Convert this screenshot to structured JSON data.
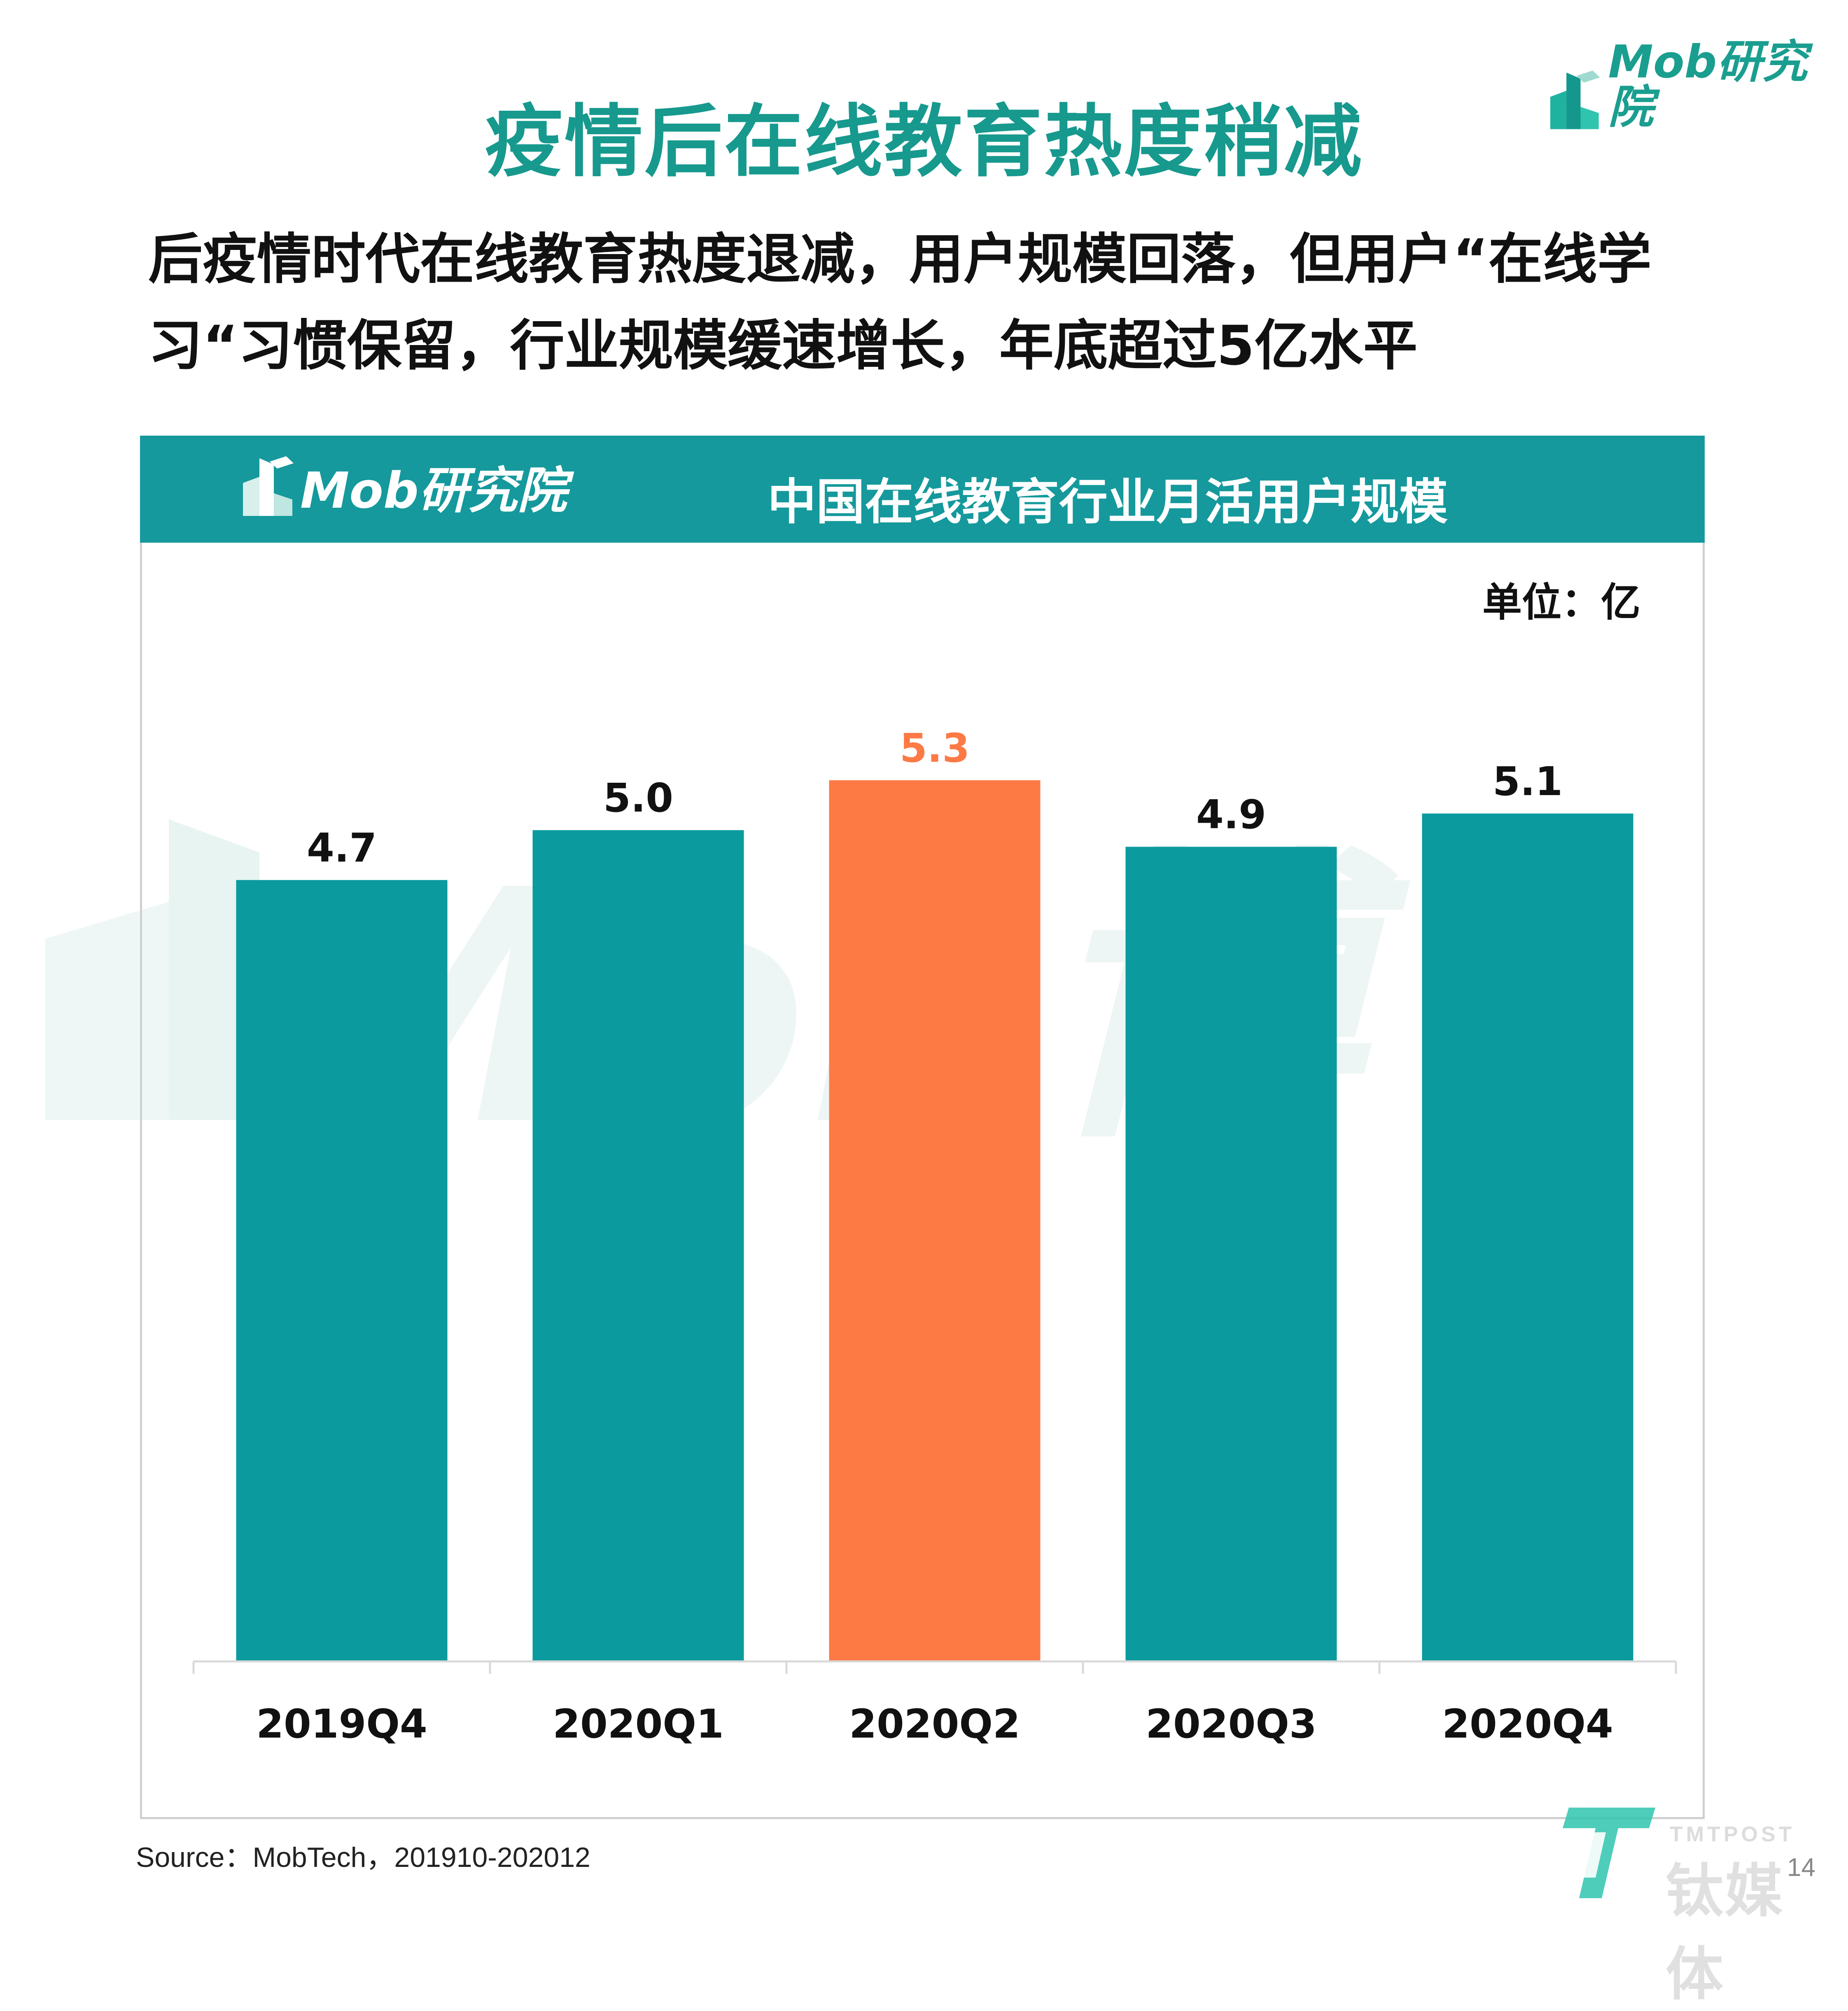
{
  "brand": {
    "logo_text": "Mob研究院",
    "colors": {
      "teal": "#0b9a9e",
      "orange": "#fd7a45",
      "title_teal": "#17998e"
    },
    "watermark_text": "Mob博",
    "tmtpost_text": "TMTPOST",
    "tmtpost_cn": "钛媒体"
  },
  "header": {
    "title": "疫情后在线教育热度稍减",
    "subtitle_line1": "后疫情时代在线教育热度退减，用户规模回落，但用户“在线学",
    "subtitle_line2": "习“习惯保留，行业规模缓速增长，年底超过5亿水平"
  },
  "chart_data": {
    "type": "bar",
    "title": "中国在线教育行业月活用户规模",
    "unit_label": "单位：亿",
    "categories": [
      "2019Q4",
      "2020Q1",
      "2020Q2",
      "2020Q3",
      "2020Q4"
    ],
    "values": [
      4.7,
      5.0,
      5.3,
      4.9,
      5.1
    ],
    "value_labels": [
      "4.7",
      "5.0",
      "5.3",
      "4.9",
      "5.1"
    ],
    "highlight_index": 2,
    "bar_color": "#0b9a9e",
    "highlight_color": "#fd7a45",
    "ylim": [
      0,
      5.3
    ],
    "grid": false,
    "legend": "none"
  },
  "footer": {
    "source": "Source：MobTech，201910-202012",
    "page_number": "14"
  }
}
